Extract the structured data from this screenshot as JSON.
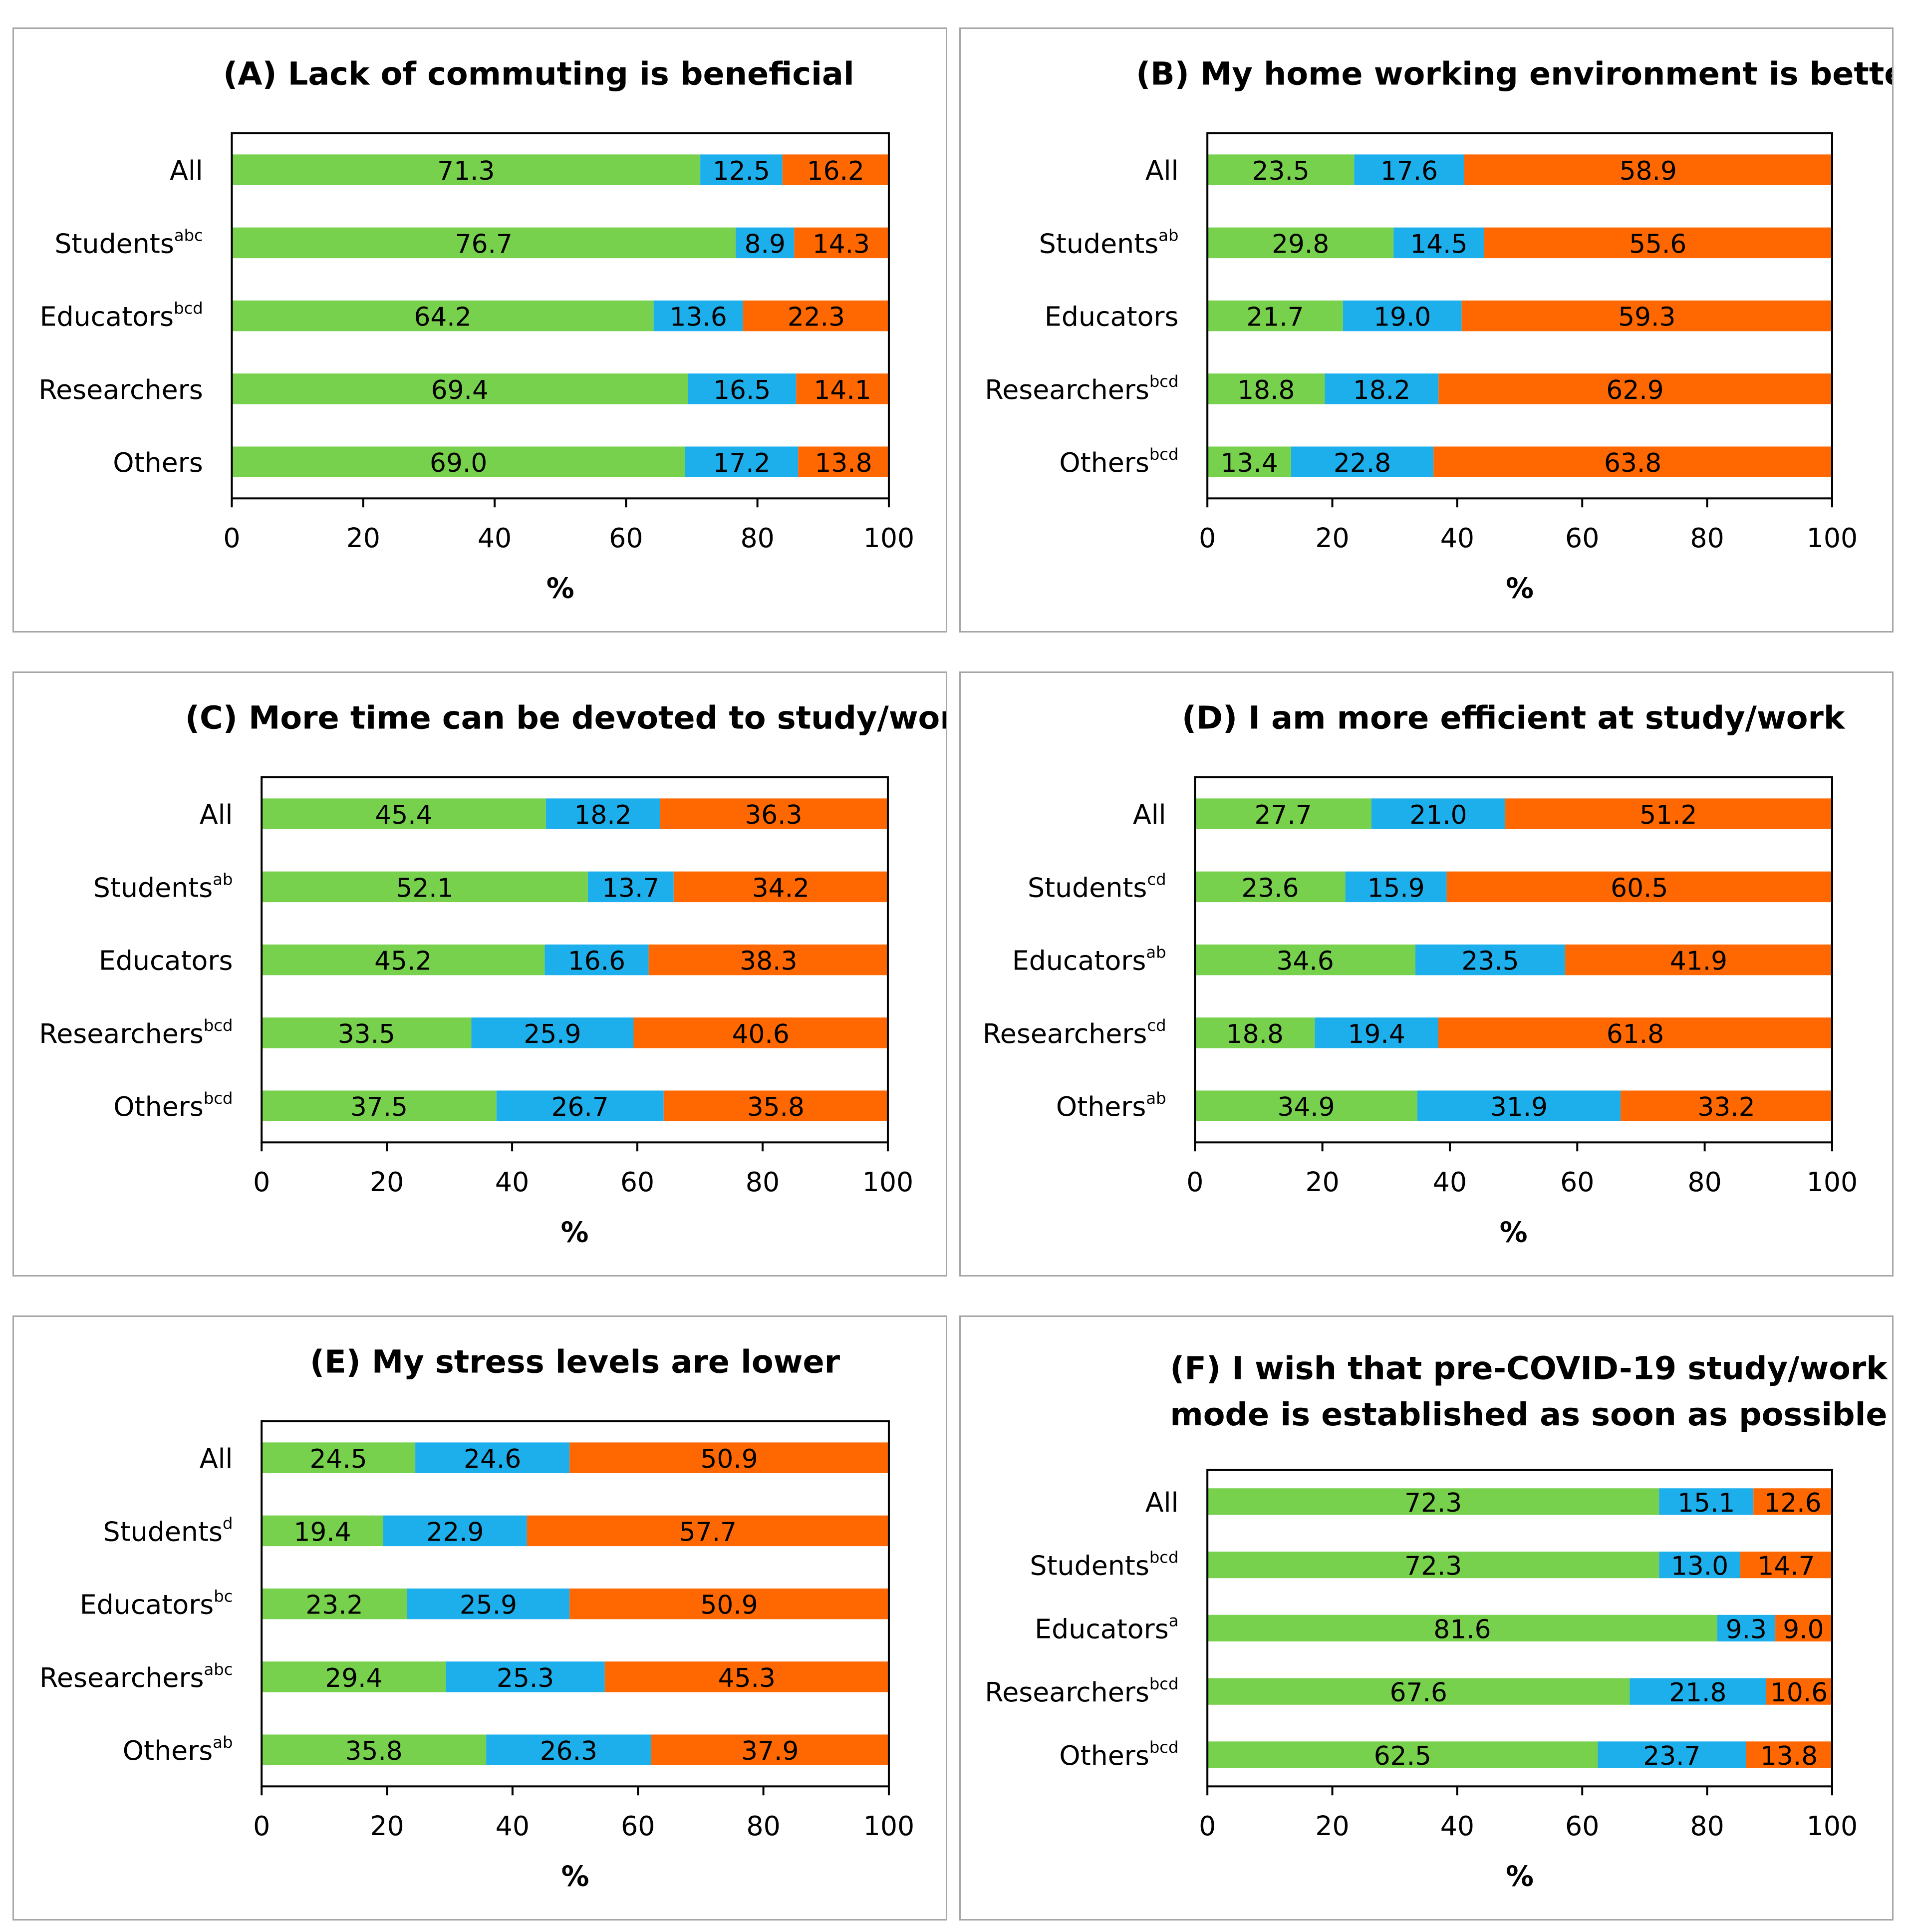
{
  "colors": {
    "agree": "#77d14d",
    "neutral": "#1daeec",
    "disagree": "#ff6700"
  },
  "chart_data": [
    {
      "type": "bar",
      "orientation": "horizontal",
      "stacked": true,
      "title": "(A) Lack of commuting is beneficial",
      "categories": [
        {
          "name": "All",
          "sup": ""
        },
        {
          "name": "Students",
          "sup": "abc"
        },
        {
          "name": "Educators",
          "sup": "bcd"
        },
        {
          "name": "Researchers",
          "sup": ""
        },
        {
          "name": "Others",
          "sup": ""
        }
      ],
      "series": [
        {
          "values": [
            71.3,
            76.7,
            64.2,
            69.4,
            69.0
          ],
          "color": "#77d14d"
        },
        {
          "values": [
            12.5,
            8.9,
            13.6,
            16.5,
            17.2
          ],
          "color": "#1daeec"
        },
        {
          "values": [
            16.2,
            14.3,
            22.3,
            14.1,
            13.8
          ],
          "color": "#ff6700"
        }
      ],
      "xlabel": "%",
      "xlim": [
        0,
        100
      ],
      "xticks": [
        "0",
        "20",
        "40",
        "60",
        "80",
        "100"
      ]
    },
    {
      "type": "bar",
      "orientation": "horizontal",
      "stacked": true,
      "title": "(B) My home working environment is better",
      "categories": [
        {
          "name": "All",
          "sup": ""
        },
        {
          "name": "Students",
          "sup": "ab"
        },
        {
          "name": "Educators",
          "sup": ""
        },
        {
          "name": "Researchers",
          "sup": "bcd"
        },
        {
          "name": "Others",
          "sup": "bcd"
        }
      ],
      "series": [
        {
          "values": [
            23.5,
            29.8,
            21.7,
            18.8,
            13.4
          ],
          "color": "#77d14d"
        },
        {
          "values": [
            17.6,
            14.5,
            19.0,
            18.2,
            22.8
          ],
          "color": "#1daeec"
        },
        {
          "values": [
            58.9,
            55.6,
            59.3,
            62.9,
            63.8
          ],
          "color": "#ff6700"
        }
      ],
      "xlabel": "%",
      "xlim": [
        0,
        100
      ],
      "xticks": [
        "0",
        "20",
        "40",
        "60",
        "80",
        "100"
      ]
    },
    {
      "type": "bar",
      "orientation": "horizontal",
      "stacked": true,
      "title": "(C) More time can be devoted to study/work",
      "categories": [
        {
          "name": "All",
          "sup": ""
        },
        {
          "name": "Students",
          "sup": "ab"
        },
        {
          "name": "Educators",
          "sup": ""
        },
        {
          "name": "Researchers",
          "sup": "bcd"
        },
        {
          "name": "Others",
          "sup": "bcd"
        }
      ],
      "series": [
        {
          "values": [
            45.4,
            52.1,
            45.2,
            33.5,
            37.5
          ],
          "color": "#77d14d"
        },
        {
          "values": [
            18.2,
            13.7,
            16.6,
            25.9,
            26.7
          ],
          "color": "#1daeec"
        },
        {
          "values": [
            36.3,
            34.2,
            38.3,
            40.6,
            35.8
          ],
          "color": "#ff6700"
        }
      ],
      "xlabel": "%",
      "xlim": [
        0,
        100
      ],
      "xticks": [
        "0",
        "20",
        "40",
        "60",
        "80",
        "100"
      ]
    },
    {
      "type": "bar",
      "orientation": "horizontal",
      "stacked": true,
      "title": "(D) I am more efficient at study/work",
      "categories": [
        {
          "name": "All",
          "sup": ""
        },
        {
          "name": "Students",
          "sup": "cd"
        },
        {
          "name": "Educators",
          "sup": "ab"
        },
        {
          "name": "Researchers",
          "sup": "cd"
        },
        {
          "name": "Others",
          "sup": "ab"
        }
      ],
      "series": [
        {
          "values": [
            27.7,
            23.6,
            34.6,
            18.8,
            34.9
          ],
          "color": "#77d14d"
        },
        {
          "values": [
            21.0,
            15.9,
            23.5,
            19.4,
            31.9
          ],
          "color": "#1daeec"
        },
        {
          "values": [
            51.2,
            60.5,
            41.9,
            61.8,
            33.2
          ],
          "color": "#ff6700"
        }
      ],
      "xlabel": "%",
      "xlim": [
        0,
        100
      ],
      "xticks": [
        "0",
        "20",
        "40",
        "60",
        "80",
        "100"
      ]
    },
    {
      "type": "bar",
      "orientation": "horizontal",
      "stacked": true,
      "title": "(E) My stress levels are lower",
      "categories": [
        {
          "name": "All",
          "sup": ""
        },
        {
          "name": "Students",
          "sup": "d"
        },
        {
          "name": "Educators",
          "sup": "bc"
        },
        {
          "name": "Researchers",
          "sup": "abc"
        },
        {
          "name": "Others",
          "sup": "ab"
        }
      ],
      "series": [
        {
          "values": [
            24.5,
            19.4,
            23.2,
            29.4,
            35.8
          ],
          "color": "#77d14d"
        },
        {
          "values": [
            24.6,
            22.9,
            25.9,
            25.3,
            26.3
          ],
          "color": "#1daeec"
        },
        {
          "values": [
            50.9,
            57.7,
            50.9,
            45.3,
            37.9
          ],
          "color": "#ff6700"
        }
      ],
      "xlabel": "%",
      "xlim": [
        0,
        100
      ],
      "xticks": [
        "0",
        "20",
        "40",
        "60",
        "80",
        "100"
      ]
    },
    {
      "type": "bar",
      "orientation": "horizontal",
      "stacked": true,
      "title": [
        "(F) I wish that pre-COVID-19 study/work",
        "mode is established as soon as possible"
      ],
      "categories": [
        {
          "name": "All",
          "sup": ""
        },
        {
          "name": "Students",
          "sup": "bcd"
        },
        {
          "name": "Educators",
          "sup": "a"
        },
        {
          "name": "Researchers",
          "sup": "bcd"
        },
        {
          "name": "Others",
          "sup": "bcd"
        }
      ],
      "series": [
        {
          "values": [
            72.3,
            72.3,
            81.6,
            67.6,
            62.5
          ],
          "color": "#77d14d"
        },
        {
          "values": [
            15.1,
            13.0,
            9.3,
            21.8,
            23.7
          ],
          "color": "#1daeec"
        },
        {
          "values": [
            12.6,
            14.7,
            9.0,
            10.6,
            13.8
          ],
          "color": "#ff6700"
        }
      ],
      "xlabel": "%",
      "xlim": [
        0,
        100
      ],
      "xticks": [
        "0",
        "20",
        "40",
        "60",
        "80",
        "100"
      ]
    }
  ]
}
